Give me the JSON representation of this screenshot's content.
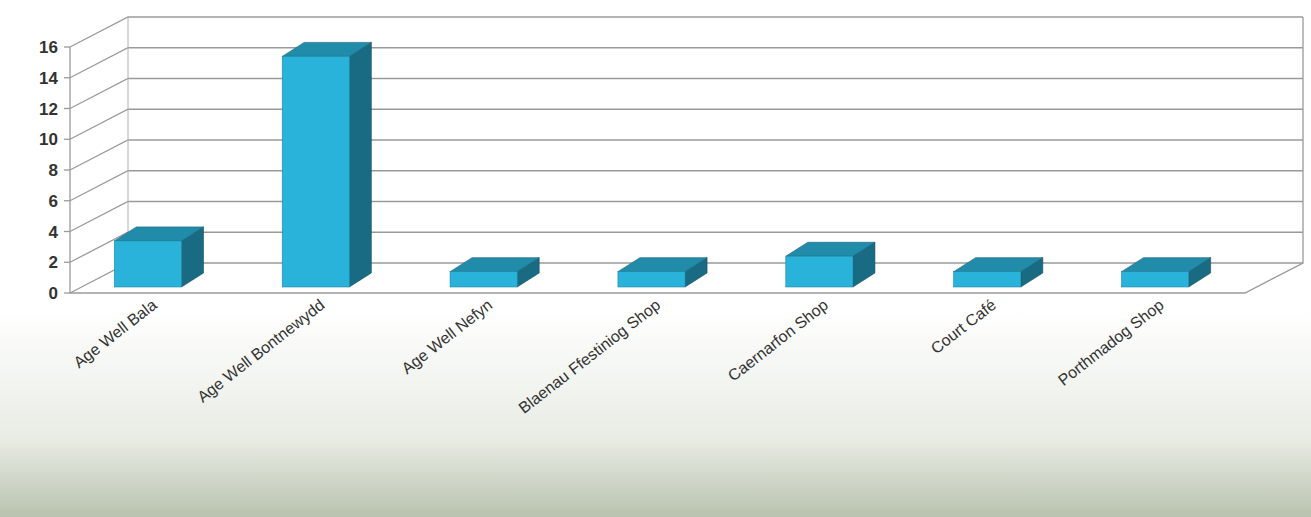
{
  "chart_data": {
    "type": "bar",
    "categories": [
      "Age Well Bala",
      "Age Well Bontnewydd",
      "Age Well Nefyn",
      "Blaenau Ffestiniog Shop",
      "Caernarfon Shop",
      "Court Café",
      "Porthmadog Shop"
    ],
    "values": [
      3,
      15,
      1,
      1,
      2,
      1,
      1
    ],
    "color": "#29b3da",
    "ylim": [
      0,
      16
    ],
    "yticks": [
      0,
      2,
      4,
      6,
      8,
      10,
      12,
      14,
      16
    ],
    "grid": true
  }
}
